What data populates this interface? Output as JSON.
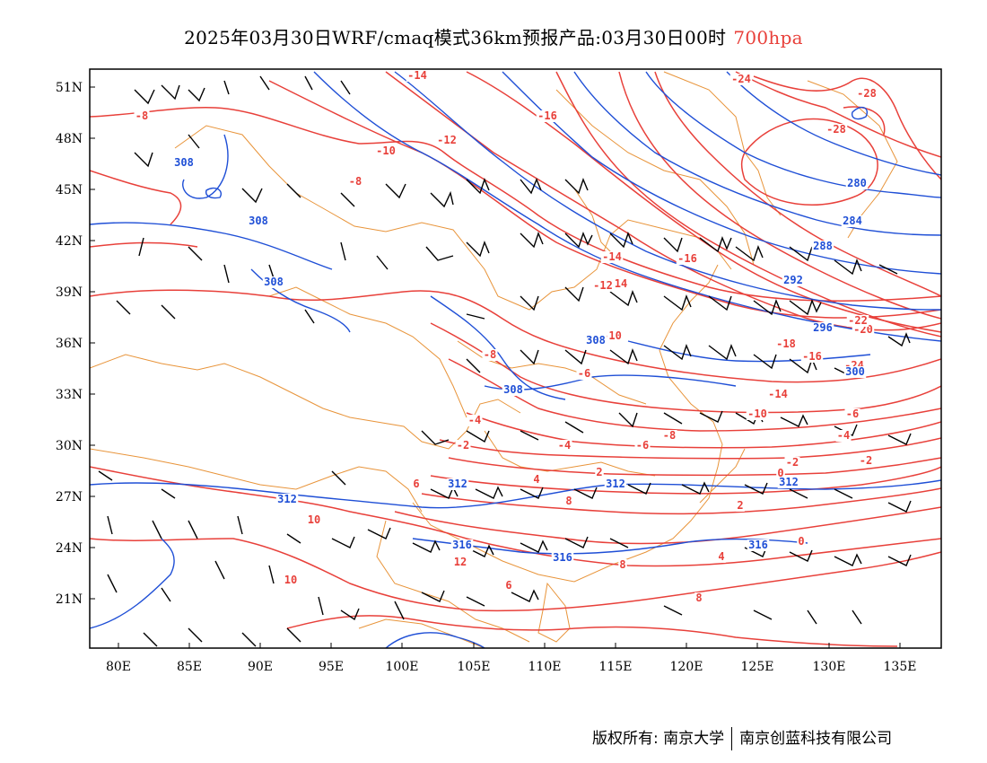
{
  "title": {
    "main": "2025年03月30日WRF/cmaq模式36km预报产品:03月30日00时",
    "level": "700hpa",
    "level_color": "#e8403a"
  },
  "axes": {
    "lon_labels": [
      "80E",
      "85E",
      "90E",
      "95E",
      "100E",
      "105E",
      "110E",
      "115E",
      "120E",
      "125E",
      "130E",
      "135E"
    ],
    "lat_labels": [
      "51N",
      "48N",
      "45N",
      "42N",
      "39N",
      "36N",
      "33N",
      "30N",
      "27N",
      "24N",
      "21N"
    ]
  },
  "colors": {
    "temperature": "#e8403a",
    "height": "#1f4fd6",
    "border": "#e8943a",
    "wind": "#000000"
  },
  "temperature_labels": [
    "-14",
    "-8",
    "-16",
    "-24",
    "-28",
    "-28",
    "-10",
    "-12",
    "-8",
    "-14",
    "-16",
    "-12",
    "14",
    "-10",
    "-8",
    "-6",
    "-4",
    "-2",
    "-4",
    "-6",
    "-8",
    "-10",
    "-14",
    "-16",
    "-18",
    "-20",
    "-24",
    "-22",
    "-6",
    "-4",
    "-2",
    "0",
    "2",
    "4",
    "8",
    "10",
    "6",
    "8",
    "2",
    "-2",
    "0",
    "4",
    "6",
    "8",
    "10",
    "12"
  ],
  "height_labels": [
    "308",
    "308",
    "308",
    "280",
    "284",
    "288",
    "292",
    "296",
    "300",
    "308",
    "308",
    "312",
    "312",
    "312",
    "316",
    "316",
    "312",
    "316"
  ],
  "footer": {
    "left": "版权所有: 南京大学",
    "right": "南京创蓝科技有限公司"
  }
}
